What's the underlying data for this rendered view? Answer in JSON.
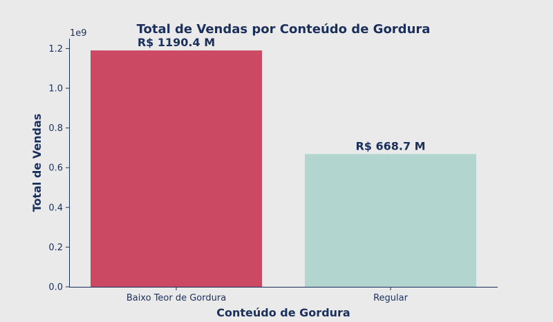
{
  "chart_data": {
    "type": "bar",
    "title": "Total de Vendas por Conteúdo de Gordura",
    "xlabel": "Conteúdo de Gordura",
    "ylabel": "Total de Vendas",
    "categories": [
      "Baixo Teor de Gordura",
      "Regular"
    ],
    "values": [
      1190400000,
      668700000
    ],
    "data_labels": [
      "R$ 1190.4 M",
      "R$ 668.7 M"
    ],
    "colors": [
      "#CC4963",
      "#B2D5CF"
    ],
    "ylim": [
      0,
      1250000000
    ],
    "yticks": [
      0,
      200000000,
      400000000,
      600000000,
      800000000,
      1000000000,
      1200000000
    ],
    "ytick_labels": [
      "0.0",
      "0.2",
      "0.4",
      "0.6",
      "0.8",
      "1.0",
      "1.2"
    ],
    "y_offset_label": "1e9",
    "grid": false,
    "text_color": "#1B2F5B",
    "background": "#EAEAEA"
  }
}
